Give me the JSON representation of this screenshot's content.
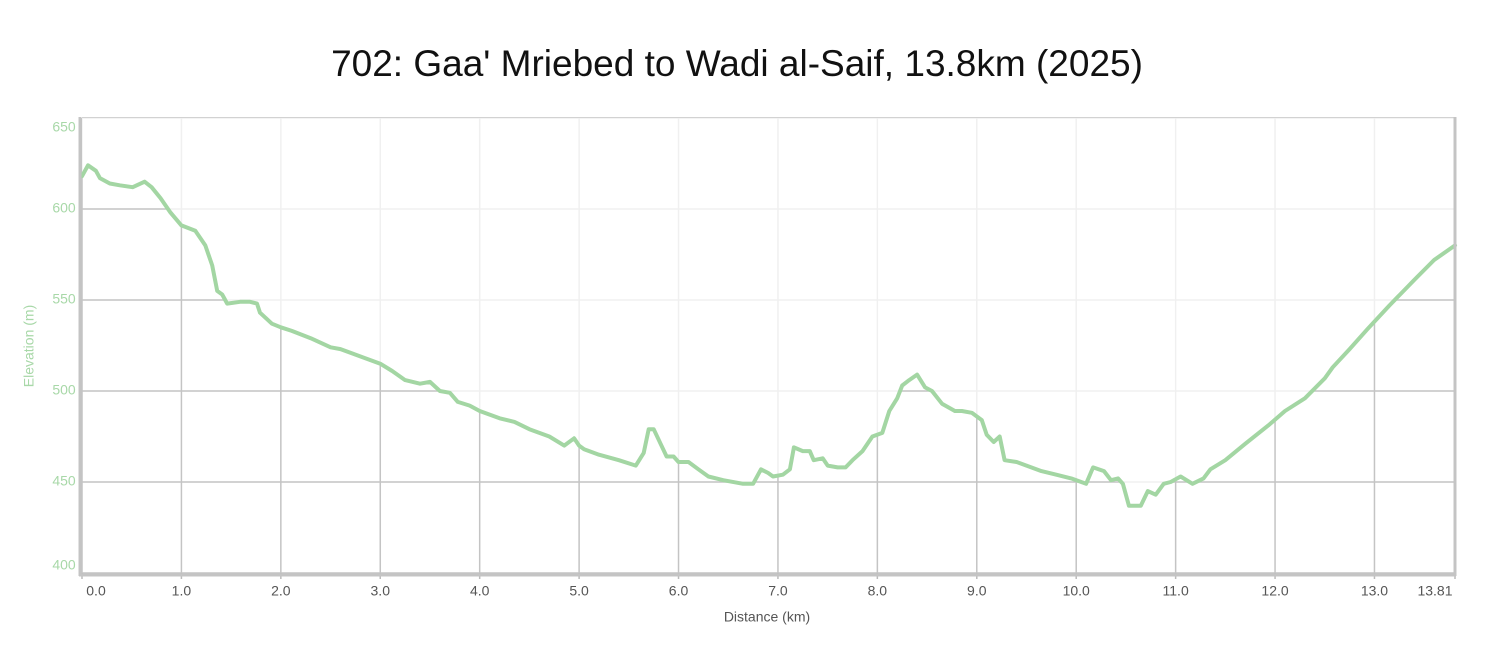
{
  "chart_data": {
    "type": "line",
    "title": "702: Gaa' Mriebed to Wadi al-Saif, 13.8km (2025)",
    "x_label": "Distance (km)",
    "y_label": "Elevation (m)",
    "color": "#a3d6a3",
    "grid": true,
    "xlim": [
      0,
      13.81
    ],
    "ylim": [
      400,
      650
    ],
    "yticks": [
      400,
      450,
      500,
      550,
      600,
      650
    ],
    "xticks": [
      {
        "value": 0,
        "label": "0.0"
      },
      {
        "value": 1,
        "label": "1.0"
      },
      {
        "value": 2,
        "label": "2.0"
      },
      {
        "value": 3,
        "label": "3.0"
      },
      {
        "value": 4,
        "label": "4.0"
      },
      {
        "value": 5,
        "label": "5.0"
      },
      {
        "value": 6,
        "label": "6.0"
      },
      {
        "value": 7,
        "label": "7.0"
      },
      {
        "value": 8,
        "label": "8.0"
      },
      {
        "value": 9,
        "label": "9.0"
      },
      {
        "value": 10,
        "label": "10.0"
      },
      {
        "value": 11,
        "label": "11.0"
      },
      {
        "value": 12,
        "label": "12.0"
      },
      {
        "value": 13,
        "label": "13.0"
      },
      13.81
    ],
    "x": [
      0,
      0.06,
      0.14,
      0.18,
      0.28,
      0.38,
      0.51,
      0.63,
      0.7,
      0.79,
      0.89,
      1.0,
      1.14,
      1.24,
      1.31,
      1.36,
      1.41,
      1.46,
      1.59,
      1.69,
      1.76,
      1.79,
      1.91,
      2.0,
      2.11,
      2.3,
      2.5,
      2.6,
      2.7,
      2.85,
      3.0,
      3.12,
      3.25,
      3.4,
      3.5,
      3.6,
      3.7,
      3.78,
      3.9,
      4.0,
      4.2,
      4.35,
      4.5,
      4.7,
      4.85,
      4.95,
      5.0,
      5.05,
      5.2,
      5.4,
      5.57,
      5.65,
      5.7,
      5.75,
      5.82,
      5.88,
      5.95,
      6.0,
      6.1,
      6.2,
      6.3,
      6.45,
      6.65,
      6.75,
      6.83,
      6.9,
      6.95,
      7.05,
      7.12,
      7.16,
      7.25,
      7.32,
      7.36,
      7.45,
      7.5,
      7.6,
      7.68,
      7.75,
      7.85,
      7.95,
      8.05,
      8.12,
      8.2,
      8.25,
      8.32,
      8.4,
      8.48,
      8.55,
      8.65,
      8.78,
      8.85,
      8.95,
      9.05,
      9.1,
      9.17,
      9.23,
      9.28,
      9.4,
      9.5,
      9.65,
      9.8,
      9.95,
      10.1,
      10.17,
      10.28,
      10.35,
      10.42,
      10.47,
      10.53,
      10.65,
      10.72,
      10.8,
      10.88,
      10.95,
      11.05,
      11.17,
      11.28,
      11.35,
      11.5,
      11.7,
      11.93,
      12.1,
      12.3,
      12.5,
      12.58,
      12.75,
      12.93,
      13.15,
      13.4,
      13.6,
      13.81
    ],
    "values": [
      618,
      624,
      621,
      617,
      614,
      613,
      612,
      615,
      612,
      606,
      598,
      591,
      588,
      580,
      569,
      555,
      553,
      548,
      549,
      549,
      548,
      543,
      537,
      535,
      533,
      529,
      524,
      523,
      521,
      518,
      515,
      511,
      506,
      504,
      505,
      500,
      499,
      494,
      492,
      489,
      485,
      483,
      479,
      475,
      470,
      474,
      470,
      468,
      465,
      462,
      459,
      466,
      479,
      479,
      471,
      464,
      464,
      461,
      461,
      457,
      453,
      451,
      449,
      449,
      457,
      455,
      453,
      454,
      457,
      469,
      467,
      467,
      462,
      463,
      459,
      458,
      458,
      462,
      467,
      475,
      477,
      489,
      496,
      503,
      506,
      509,
      502,
      500,
      493,
      489,
      489,
      488,
      484,
      476,
      472,
      475,
      462,
      461,
      459,
      456,
      454,
      452,
      449,
      458,
      456,
      451,
      452,
      449,
      437,
      437,
      445,
      443,
      449,
      450,
      453,
      449,
      452,
      457,
      462,
      471,
      481,
      489,
      496,
      507,
      513,
      523,
      534,
      547,
      561,
      572,
      580
    ]
  }
}
